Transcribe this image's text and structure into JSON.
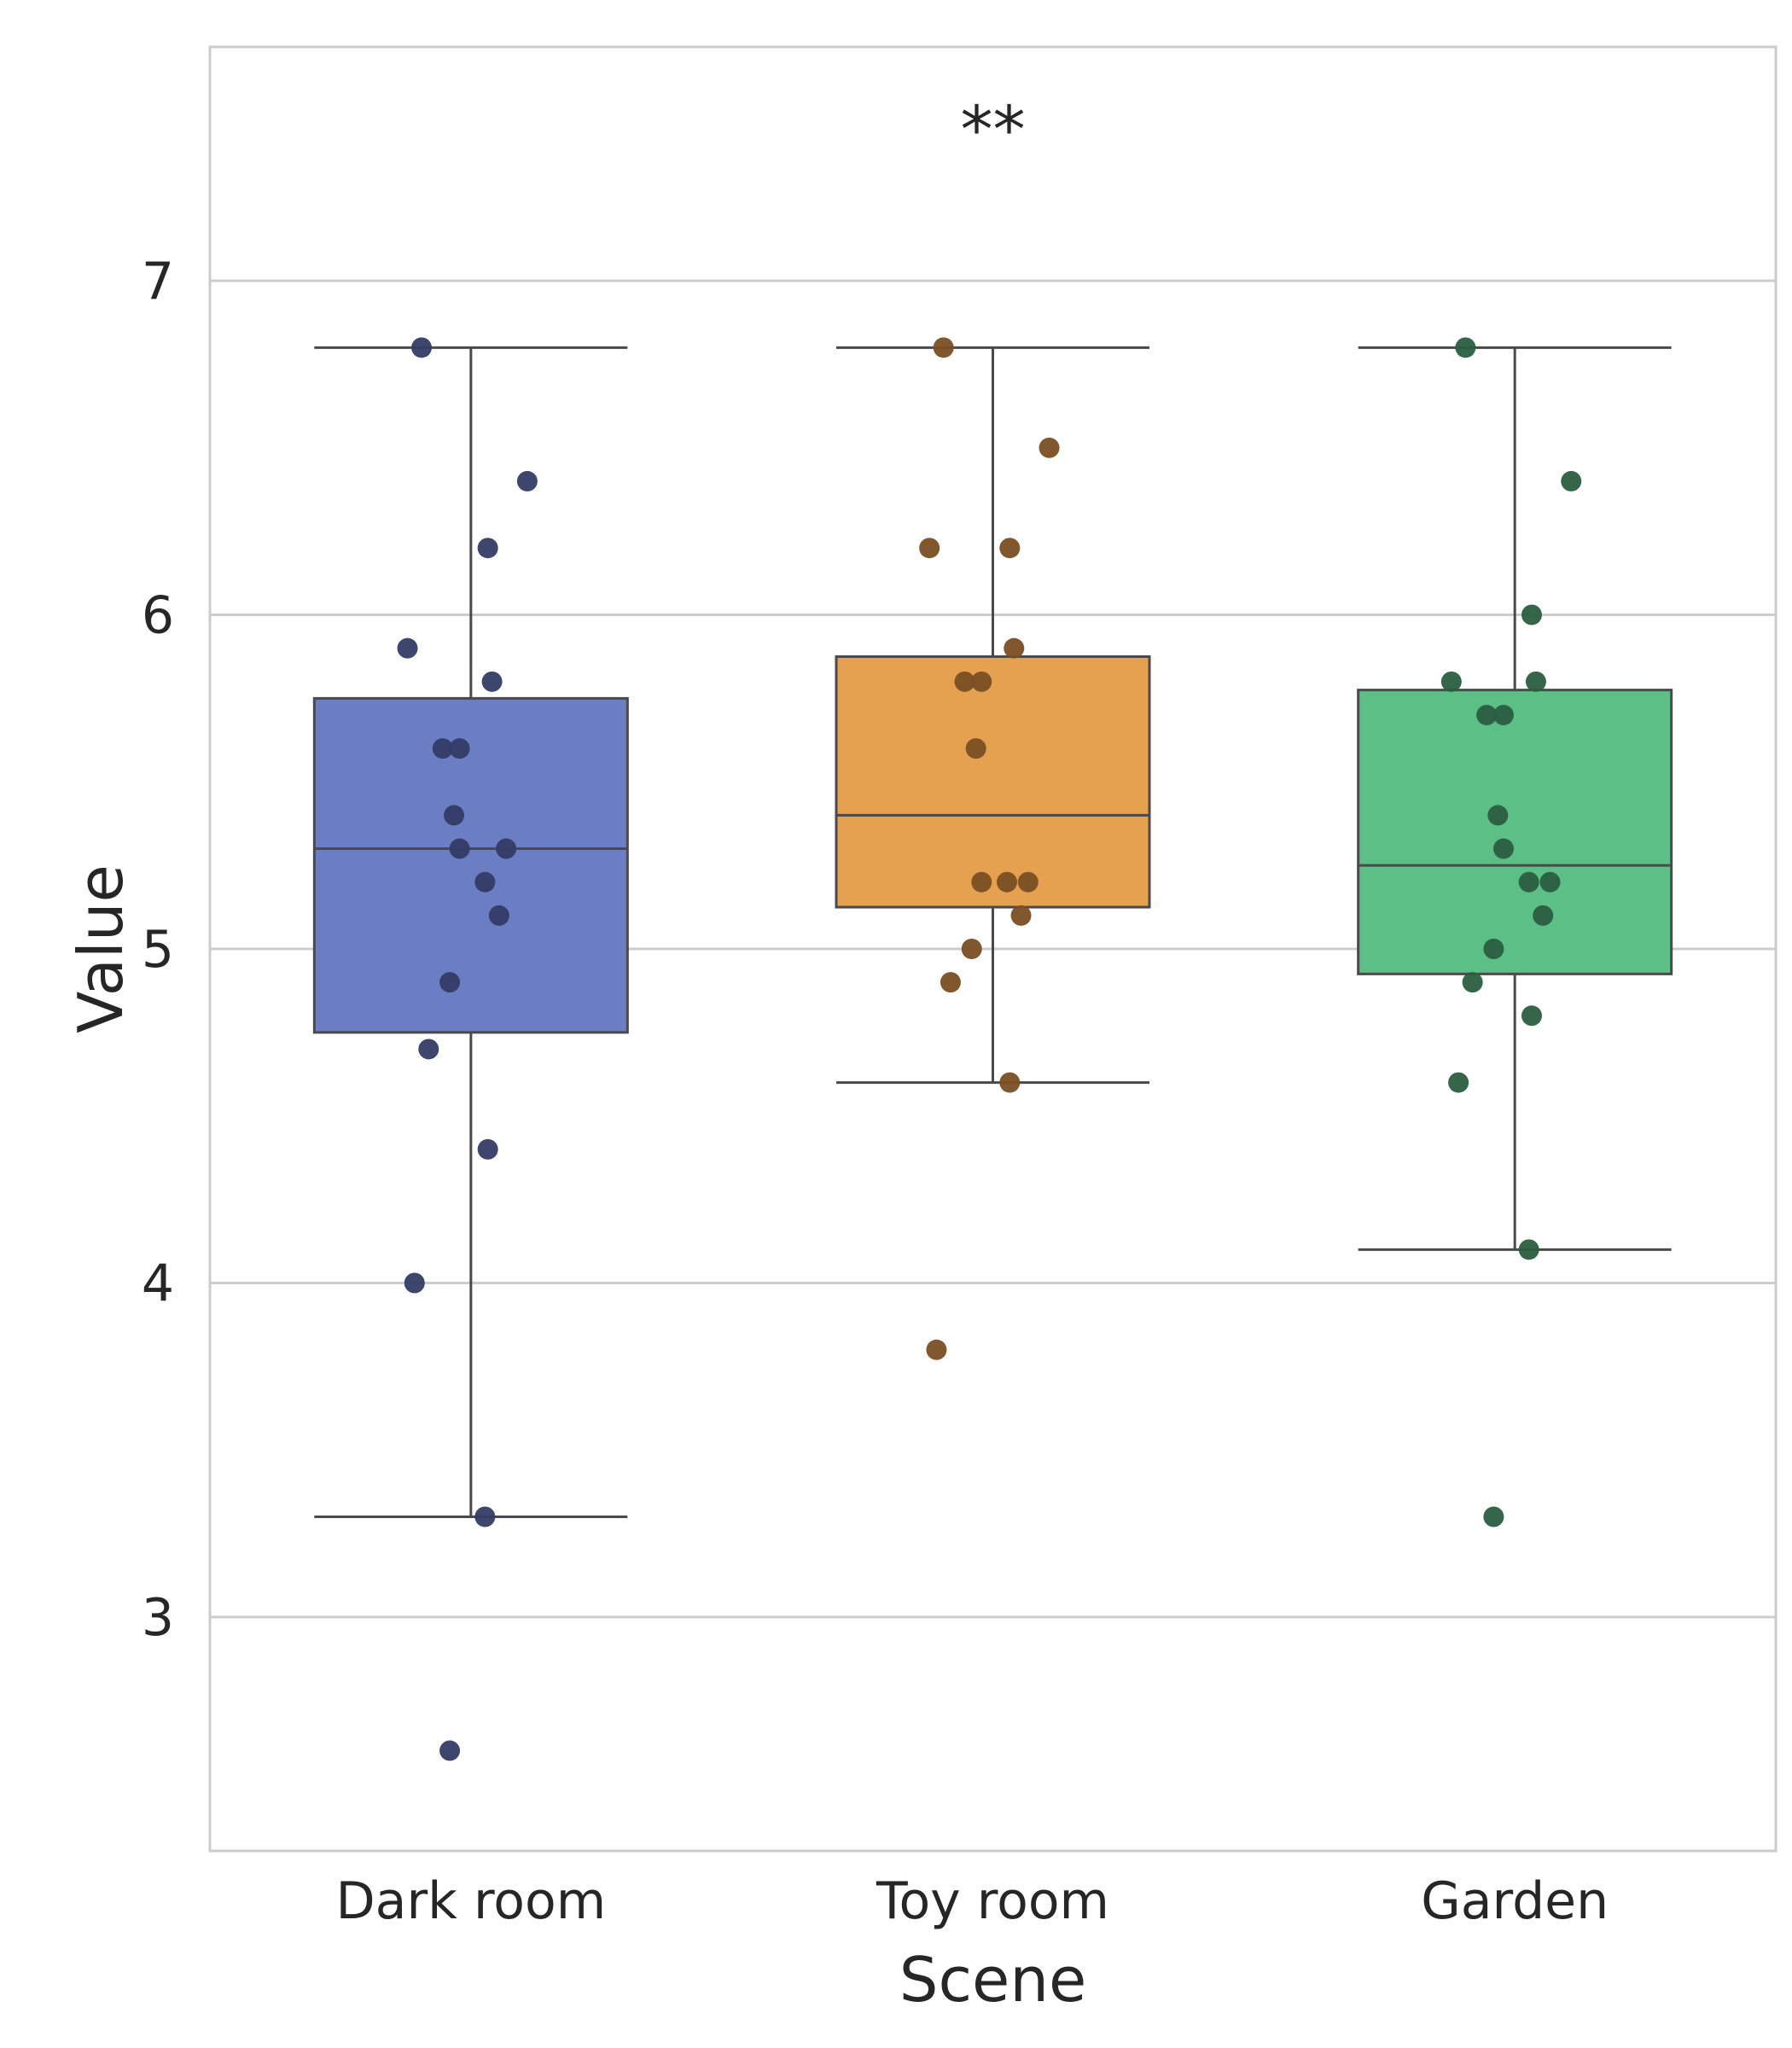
{
  "chart_data": {
    "type": "box",
    "title": "",
    "xlabel": "Scene",
    "ylabel": "Value",
    "ylim": [
      2.3,
      7.7
    ],
    "yticks": [
      3,
      4,
      5,
      6,
      7
    ],
    "grid": "horizontal",
    "annotation": "**",
    "categories": [
      "Dark room",
      "Toy room",
      "Garden"
    ],
    "boxes": [
      {
        "name": "Dark room",
        "color": "#6B7EC4",
        "point_color": "#343C66",
        "q1": 4.75,
        "median": 5.3,
        "q3": 5.75,
        "whisker_low": 3.3,
        "whisker_high": 6.8,
        "points": [
          6.8,
          6.4,
          6.2,
          5.9,
          5.8,
          5.6,
          5.6,
          5.4,
          5.3,
          5.3,
          5.2,
          5.1,
          4.9,
          4.7,
          4.4,
          4.0,
          3.3,
          2.6
        ]
      },
      {
        "name": "Toy room",
        "color": "#E5A050",
        "point_color": "#7A4F22",
        "q1": 5.125,
        "median": 5.4,
        "q3": 5.875,
        "whisker_low": 4.6,
        "whisker_high": 6.8,
        "points": [
          6.8,
          6.5,
          6.2,
          6.2,
          5.9,
          5.8,
          5.8,
          5.6,
          5.2,
          5.2,
          5.2,
          5.1,
          5.0,
          4.9,
          4.6,
          3.8
        ]
      },
      {
        "name": "Garden",
        "color": "#5CBF86",
        "point_color": "#2A5E40",
        "q1": 4.925,
        "median": 5.25,
        "q3": 5.775,
        "whisker_low": 4.1,
        "whisker_high": 6.8,
        "points": [
          6.8,
          6.4,
          6.0,
          5.8,
          5.8,
          5.7,
          5.7,
          5.4,
          5.3,
          5.2,
          5.2,
          5.1,
          5.0,
          4.9,
          4.8,
          4.6,
          4.1,
          3.3
        ]
      }
    ]
  }
}
